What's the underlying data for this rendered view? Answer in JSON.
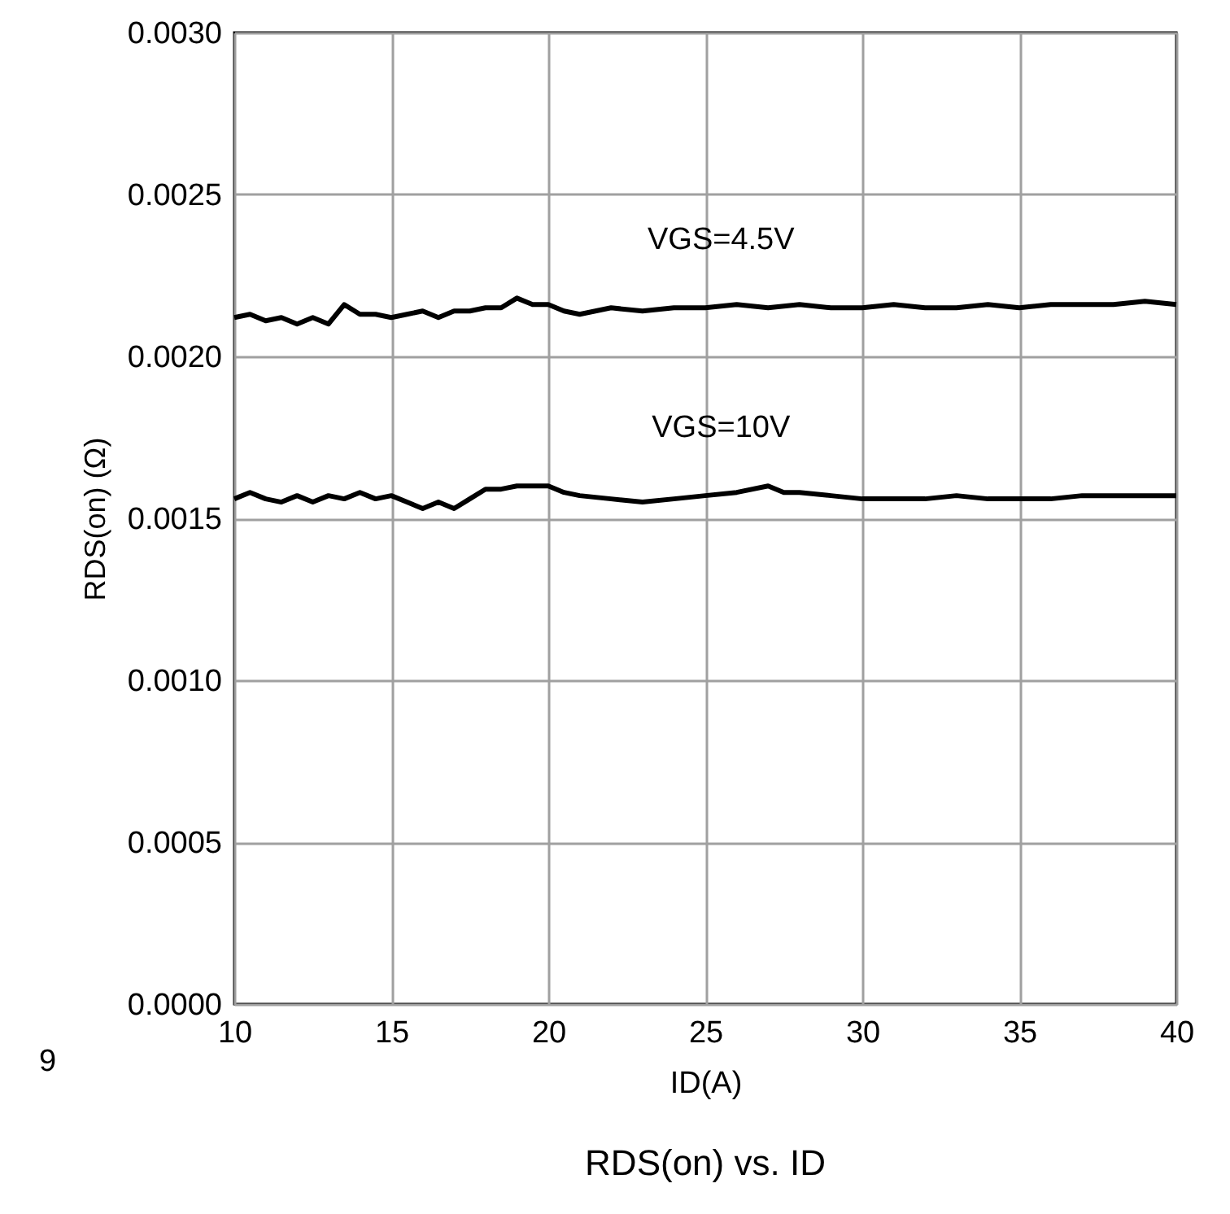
{
  "chart_data": {
    "type": "line",
    "title": "RDS(on) vs. ID",
    "xlabel": "ID(A)",
    "ylabel": "RDS(on) (Ω)",
    "xlim": [
      10,
      40
    ],
    "xticks": [
      10,
      15,
      20,
      25,
      30,
      35,
      40
    ],
    "ylim": [
      0,
      0.003
    ],
    "yticks": [
      {
        "value": 0,
        "label": "0.0000"
      },
      {
        "value": 0.0005,
        "label": "0.0005"
      },
      {
        "value": 0.001,
        "label": "0.0010"
      },
      {
        "value": 0.0015,
        "label": "0.0015"
      },
      {
        "value": 0.002,
        "label": "0.0020"
      },
      {
        "value": 0.0025,
        "label": "0.0025"
      },
      {
        "value": 0.003,
        "label": "0.0030"
      }
    ],
    "grid": true,
    "marker": "none",
    "line_style": "solid",
    "annotations": [
      "9"
    ],
    "series": [
      {
        "name": "VGS=4.5V",
        "color": "#000000",
        "x": [
          10,
          10.5,
          11,
          11.5,
          12,
          12.5,
          13,
          13.5,
          14,
          14.5,
          15,
          15.5,
          16,
          16.5,
          17,
          17.5,
          18,
          18.5,
          19,
          19.5,
          20,
          20.5,
          21,
          22,
          23,
          24,
          25,
          26,
          27,
          28,
          29,
          30,
          31,
          32,
          33,
          34,
          35,
          36,
          37,
          38,
          39,
          40
        ],
        "values": [
          0.00212,
          0.00213,
          0.00211,
          0.00212,
          0.0021,
          0.00212,
          0.0021,
          0.00216,
          0.00213,
          0.00213,
          0.00212,
          0.00213,
          0.00214,
          0.00212,
          0.00214,
          0.00214,
          0.00215,
          0.00215,
          0.00218,
          0.00216,
          0.00216,
          0.00214,
          0.00213,
          0.00215,
          0.00214,
          0.00215,
          0.00215,
          0.00216,
          0.00215,
          0.00216,
          0.00215,
          0.00215,
          0.00216,
          0.00215,
          0.00215,
          0.00216,
          0.00215,
          0.00216,
          0.00216,
          0.00216,
          0.00217,
          0.00216
        ]
      },
      {
        "name": "VGS=10V",
        "color": "#000000",
        "x": [
          10,
          10.5,
          11,
          11.5,
          12,
          12.5,
          13,
          13.5,
          14,
          14.5,
          15,
          15.5,
          16,
          16.5,
          17,
          17.5,
          18,
          18.5,
          19,
          19.5,
          20,
          20.5,
          21,
          22,
          23,
          24,
          25,
          26,
          27,
          27.5,
          28,
          29,
          30,
          31,
          32,
          33,
          34,
          35,
          36,
          37,
          38,
          39,
          40
        ],
        "values": [
          0.00156,
          0.00158,
          0.00156,
          0.00155,
          0.00157,
          0.00155,
          0.00157,
          0.00156,
          0.00158,
          0.00156,
          0.00157,
          0.00155,
          0.00153,
          0.00155,
          0.00153,
          0.00156,
          0.00159,
          0.00159,
          0.0016,
          0.0016,
          0.0016,
          0.00158,
          0.00157,
          0.00156,
          0.00155,
          0.00156,
          0.00157,
          0.00158,
          0.0016,
          0.00158,
          0.00158,
          0.00157,
          0.00156,
          0.00156,
          0.00156,
          0.00157,
          0.00156,
          0.00156,
          0.00156,
          0.00157,
          0.00157,
          0.00157,
          0.00157
        ]
      }
    ]
  }
}
